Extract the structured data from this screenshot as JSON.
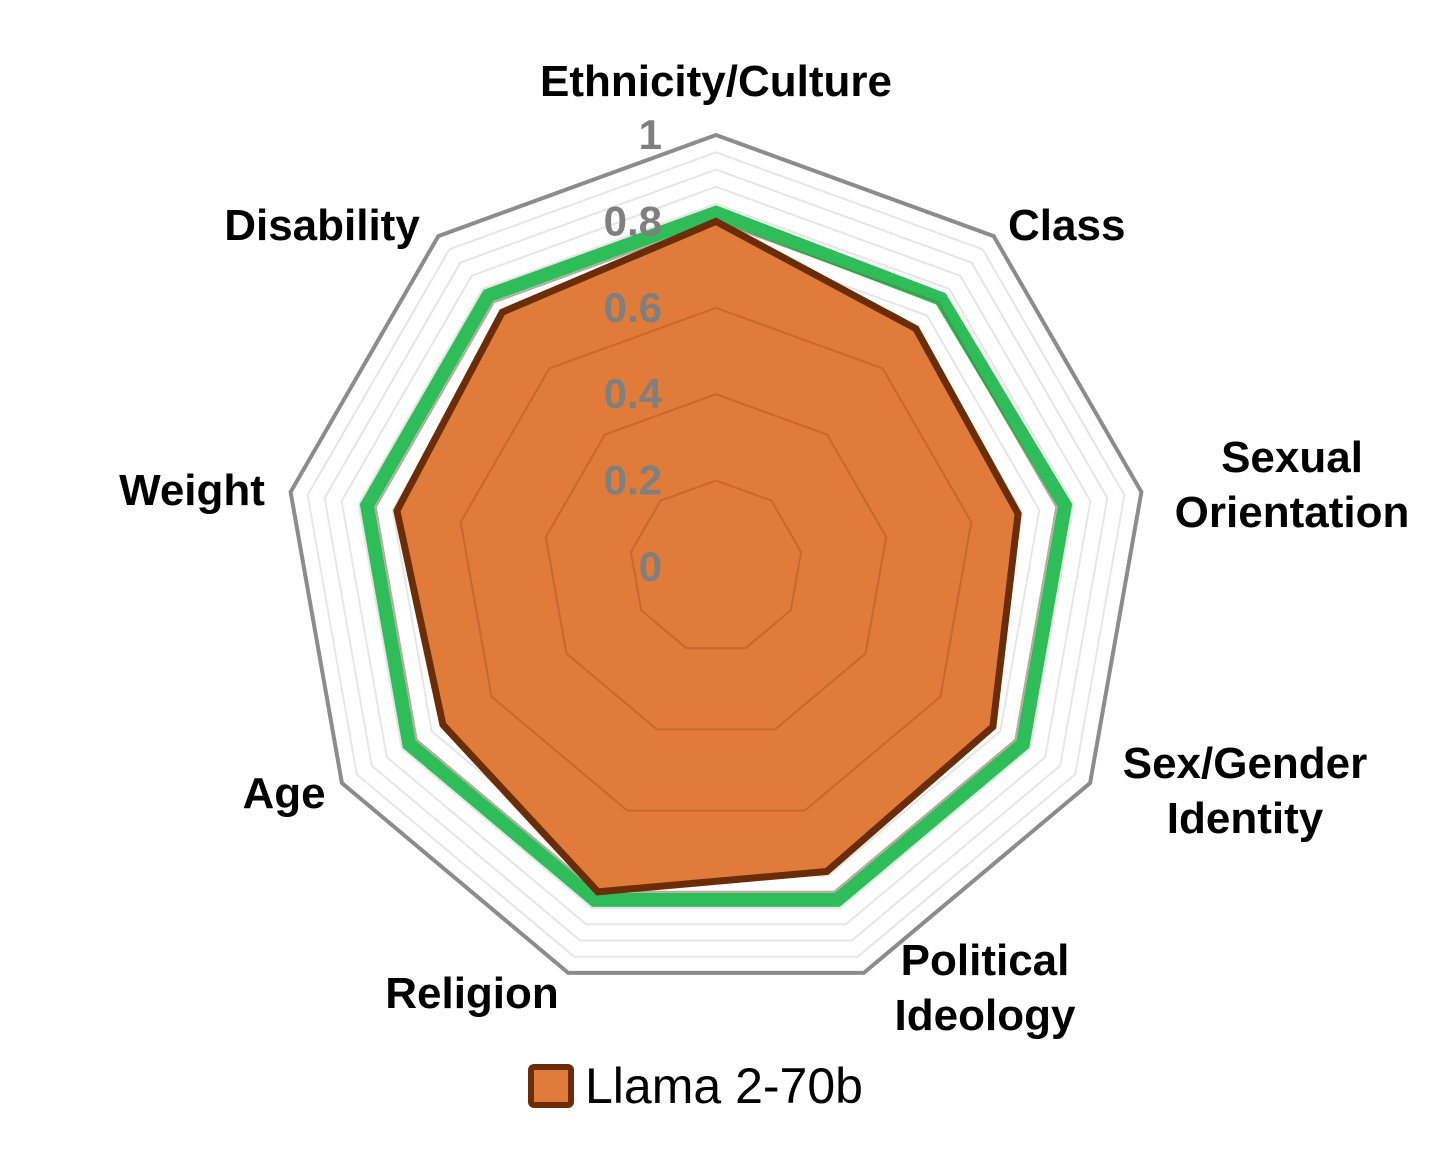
{
  "chart_data": {
    "type": "radar",
    "categories": [
      "Ethnicity/Culture",
      "Class",
      "Sexual Orientation",
      "Sex/Gender Identity",
      "Political Ideology",
      "Religion",
      "Age",
      "Weight",
      "Disability"
    ],
    "category_lines": [
      [
        "Ethnicity/Culture"
      ],
      [
        "Class"
      ],
      [
        "Sexual",
        "Orientation"
      ],
      [
        "Sex/Gender",
        "Identity"
      ],
      [
        "Political",
        "Ideology"
      ],
      [
        "Religion"
      ],
      [
        "Age"
      ],
      [
        "Weight"
      ],
      [
        "Disability"
      ]
    ],
    "rlim": [
      0,
      1
    ],
    "ticks": [
      0,
      0.2,
      0.4,
      0.6,
      0.8,
      1
    ],
    "tick_labels": [
      "0",
      "0.2",
      "0.4",
      "0.6",
      "0.8",
      "1"
    ],
    "series": [
      {
        "name": "",
        "color": "#2fbd5a",
        "fill": "none",
        "values": [
          0.82,
          0.81,
          0.82,
          0.82,
          0.82,
          0.82,
          0.82,
          0.82,
          0.82
        ]
      },
      {
        "name": "Llama 2-70b",
        "color": "#6b2c08",
        "fill": "#e07b39",
        "values": [
          0.8,
          0.72,
          0.71,
          0.74,
          0.75,
          0.8,
          0.73,
          0.75,
          0.77
        ]
      }
    ],
    "legend": {
      "position": "bottom",
      "entries": [
        "Llama 2-70b"
      ]
    }
  }
}
